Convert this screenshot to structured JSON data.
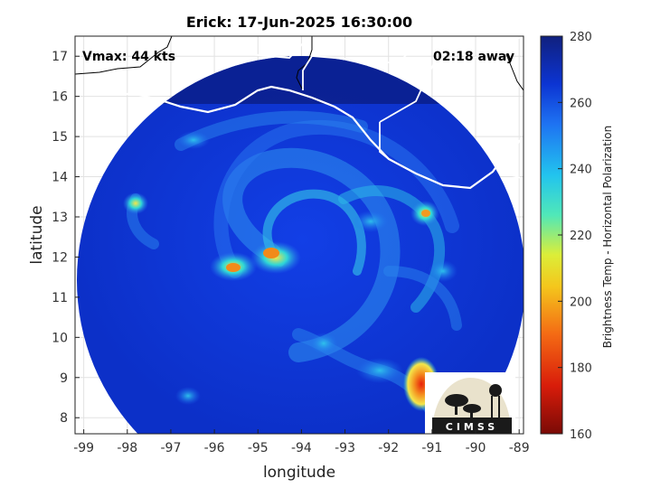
{
  "title": "Erick: 17-Jun-2025 16:30:00",
  "vmax_label": "Vmax: 44 kts",
  "away_label": "02:18 away",
  "xlabel": "longitude",
  "ylabel": "latitude",
  "colorbar_label": "Brightness Temp - Horizontal Polarization",
  "logo_text": "CIMSS",
  "x_ticks": [
    -99,
    -98,
    -97,
    -96,
    -95,
    -94,
    -93,
    -92,
    -91,
    -90,
    -89
  ],
  "y_ticks": [
    8,
    9,
    10,
    11,
    12,
    13,
    14,
    15,
    16,
    17
  ],
  "colorbar_ticks": [
    160,
    180,
    200,
    220,
    240,
    260,
    280
  ],
  "xlim": [
    -99.2,
    -88.9
  ],
  "ylim": [
    7.6,
    17.5
  ],
  "clim": [
    160,
    280
  ],
  "colors": {
    "ocean_warm": "#0b33d8",
    "cloud_cyan": "#2ad4e0",
    "convective_red": "#e8200a",
    "coastline": "#ffffff",
    "land_border": "#000000"
  }
}
